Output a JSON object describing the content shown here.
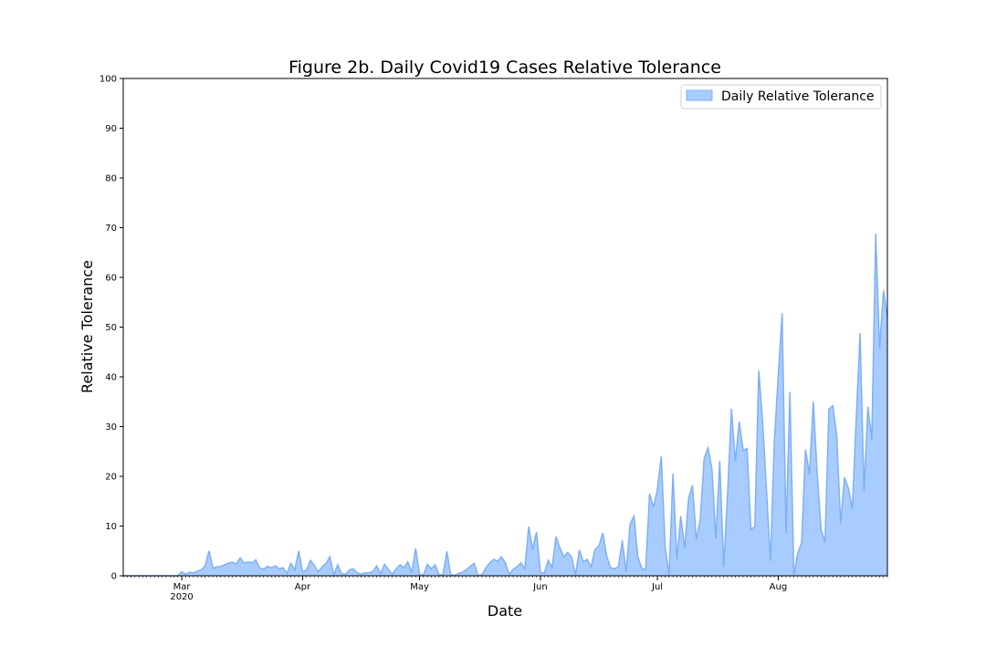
{
  "chart_data": {
    "type": "area",
    "title": "Figure 2b. Daily Covid19 Cases Relative Tolerance",
    "xlabel": "Date",
    "ylabel": "Relative Tolerance",
    "x_start": "2020-02-15",
    "x_end": "2020-08-29",
    "xlim": [
      "2020-02-15",
      "2020-08-29"
    ],
    "ylim": [
      0,
      100
    ],
    "y_ticks": [
      0,
      10,
      20,
      30,
      40,
      50,
      60,
      70,
      80,
      90,
      100
    ],
    "x_ticks": [
      {
        "date": "2020-03-01",
        "label": "Mar",
        "sublabel": "2020"
      },
      {
        "date": "2020-04-01",
        "label": "Apr",
        "sublabel": ""
      },
      {
        "date": "2020-05-01",
        "label": "May",
        "sublabel": ""
      },
      {
        "date": "2020-06-01",
        "label": "Jun",
        "sublabel": ""
      },
      {
        "date": "2020-07-01",
        "label": "Jul",
        "sublabel": ""
      },
      {
        "date": "2020-08-01",
        "label": "Aug",
        "sublabel": ""
      }
    ],
    "grid": false,
    "legend_position": "top-right",
    "series": [
      {
        "name": "Daily Relative Tolerance",
        "fill_color": "#a8ccff",
        "line_color": "#7fb0f5",
        "x": [
          "2020-02-15",
          "2020-02-16",
          "2020-02-17",
          "2020-02-18",
          "2020-02-19",
          "2020-02-20",
          "2020-02-21",
          "2020-02-22",
          "2020-02-23",
          "2020-02-24",
          "2020-02-25",
          "2020-02-26",
          "2020-02-27",
          "2020-02-28",
          "2020-02-29",
          "2020-03-01",
          "2020-03-02",
          "2020-03-03",
          "2020-03-04",
          "2020-03-05",
          "2020-03-06",
          "2020-03-07",
          "2020-03-08",
          "2020-03-09",
          "2020-03-10",
          "2020-03-11",
          "2020-03-12",
          "2020-03-13",
          "2020-03-14",
          "2020-03-15",
          "2020-03-16",
          "2020-03-17",
          "2020-03-18",
          "2020-03-19",
          "2020-03-20",
          "2020-03-21",
          "2020-03-22",
          "2020-03-23",
          "2020-03-24",
          "2020-03-25",
          "2020-03-26",
          "2020-03-27",
          "2020-03-28",
          "2020-03-29",
          "2020-03-30",
          "2020-03-31",
          "2020-04-01",
          "2020-04-02",
          "2020-04-03",
          "2020-04-04",
          "2020-04-05",
          "2020-04-06",
          "2020-04-07",
          "2020-04-08",
          "2020-04-09",
          "2020-04-10",
          "2020-04-11",
          "2020-04-12",
          "2020-04-13",
          "2020-04-14",
          "2020-04-15",
          "2020-04-16",
          "2020-04-17",
          "2020-04-18",
          "2020-04-19",
          "2020-04-20",
          "2020-04-21",
          "2020-04-22",
          "2020-04-23",
          "2020-04-24",
          "2020-04-25",
          "2020-04-26",
          "2020-04-27",
          "2020-04-28",
          "2020-04-29",
          "2020-04-30",
          "2020-05-01",
          "2020-05-02",
          "2020-05-03",
          "2020-05-04",
          "2020-05-05",
          "2020-05-06",
          "2020-05-07",
          "2020-05-08",
          "2020-05-09",
          "2020-05-10",
          "2020-05-11",
          "2020-05-12",
          "2020-05-13",
          "2020-05-14",
          "2020-05-15",
          "2020-05-16",
          "2020-05-17",
          "2020-05-18",
          "2020-05-19",
          "2020-05-20",
          "2020-05-21",
          "2020-05-22",
          "2020-05-23",
          "2020-05-24",
          "2020-05-25",
          "2020-05-26",
          "2020-05-27",
          "2020-05-28",
          "2020-05-29",
          "2020-05-30",
          "2020-05-31",
          "2020-06-01",
          "2020-06-02",
          "2020-06-03",
          "2020-06-04",
          "2020-06-05",
          "2020-06-06",
          "2020-06-07",
          "2020-06-08",
          "2020-06-09",
          "2020-06-10",
          "2020-06-11",
          "2020-06-12",
          "2020-06-13",
          "2020-06-14",
          "2020-06-15",
          "2020-06-16",
          "2020-06-17",
          "2020-06-18",
          "2020-06-19",
          "2020-06-20",
          "2020-06-21",
          "2020-06-22",
          "2020-06-23",
          "2020-06-24",
          "2020-06-25",
          "2020-06-26",
          "2020-06-27",
          "2020-06-28",
          "2020-06-29",
          "2020-06-30",
          "2020-07-01",
          "2020-07-02",
          "2020-07-03",
          "2020-07-04",
          "2020-07-05",
          "2020-07-06",
          "2020-07-07",
          "2020-07-08",
          "2020-07-09",
          "2020-07-10",
          "2020-07-11",
          "2020-07-12",
          "2020-07-13",
          "2020-07-14",
          "2020-07-15",
          "2020-07-16",
          "2020-07-17",
          "2020-07-18",
          "2020-07-19",
          "2020-07-20",
          "2020-07-21",
          "2020-07-22",
          "2020-07-23",
          "2020-07-24",
          "2020-07-25",
          "2020-07-26",
          "2020-07-27",
          "2020-07-28",
          "2020-07-29",
          "2020-07-30",
          "2020-07-31",
          "2020-08-01",
          "2020-08-02",
          "2020-08-03",
          "2020-08-04",
          "2020-08-05",
          "2020-08-06",
          "2020-08-07",
          "2020-08-08",
          "2020-08-09",
          "2020-08-10",
          "2020-08-11",
          "2020-08-12",
          "2020-08-13",
          "2020-08-14",
          "2020-08-15",
          "2020-08-16",
          "2020-08-17",
          "2020-08-18",
          "2020-08-19",
          "2020-08-20",
          "2020-08-21",
          "2020-08-22",
          "2020-08-23",
          "2020-08-24",
          "2020-08-25",
          "2020-08-26",
          "2020-08-27",
          "2020-08-28",
          "2020-08-29"
        ],
        "values": [
          0,
          0,
          0,
          0,
          0,
          0,
          0,
          0,
          0,
          0,
          0,
          0,
          0,
          0,
          0,
          0.8,
          0.3,
          0.7,
          0.6,
          0.9,
          1.2,
          2.0,
          5.0,
          1.5,
          1.8,
          1.9,
          2.2,
          2.6,
          2.7,
          2.4,
          3.6,
          2.5,
          2.8,
          2.6,
          3.2,
          1.6,
          1.3,
          1.9,
          1.6,
          2.0,
          1.4,
          1.6,
          0.5,
          2.5,
          1.2,
          5.0,
          0.8,
          1.1,
          3.1,
          2.1,
          0.8,
          1.8,
          2.5,
          3.8,
          0.2,
          2.2,
          0.4,
          0.3,
          1.2,
          1.4,
          0.6,
          0.3,
          0.6,
          0.6,
          0.8,
          2.0,
          0.4,
          2.3,
          1.3,
          0.3,
          1.4,
          2.2,
          1.6,
          2.8,
          0.6,
          5.5,
          0.3,
          0.2,
          2.3,
          1.4,
          2.2,
          0.2,
          0.2,
          4.9,
          0.2,
          0.1,
          0.5,
          0.7,
          1.2,
          1.9,
          2.5,
          0.1,
          0.2,
          1.6,
          2.6,
          3.3,
          2.9,
          3.8,
          2.6,
          0.3,
          1.3,
          1.8,
          2.6,
          1.4,
          9.9,
          5.3,
          8.8,
          0.7,
          0.5,
          3.1,
          1.6,
          7.9,
          5.6,
          3.8,
          4.7,
          3.8,
          0.2,
          5.2,
          2.8,
          3.3,
          1.8,
          5.3,
          6.0,
          8.6,
          4.0,
          1.6,
          1.4,
          1.8,
          7.1,
          0.8,
          10.4,
          12.0,
          3.8,
          1.5,
          1.2,
          16.5,
          13.8,
          17.4,
          24.0,
          5.8,
          0.2,
          20.6,
          3.3,
          12.0,
          5.5,
          15.6,
          18.2,
          7.3,
          11.3,
          23.6,
          25.7,
          21.5,
          7.4,
          23.1,
          1.9,
          16.3,
          33.6,
          23.0,
          31.0,
          25.2,
          25.6,
          9.3,
          9.9,
          41.3,
          31.0,
          17.0,
          3.0,
          27.0,
          40.2,
          52.8,
          8.5,
          37.0,
          0.2,
          4.5,
          6.7,
          25.4,
          20.4,
          35.0,
          20.4,
          9.3,
          6.7,
          33.5,
          34.2,
          28.3,
          10.6,
          19.8,
          17.6,
          13.4,
          31.6,
          48.8,
          17.0,
          34.0,
          27.4,
          68.8,
          45.7,
          57.4,
          51.8
        ]
      }
    ]
  }
}
